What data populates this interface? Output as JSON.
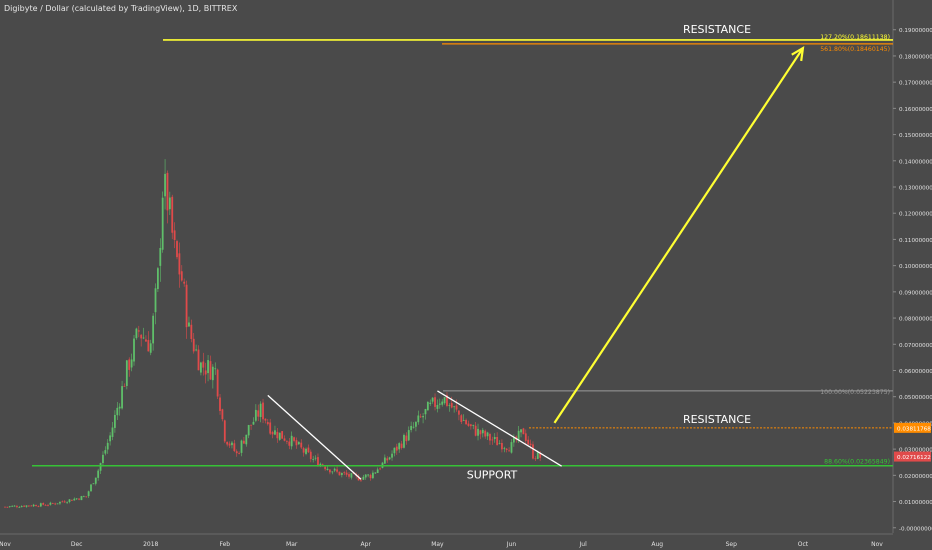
{
  "header": {
    "title": "Digibyte / Dollar (calculated by TradingView), 1D, BITTREX"
  },
  "colors": {
    "background": "#4a4a4a",
    "up": "#5fbf6a",
    "down": "#e04a4a",
    "support": "#36c236",
    "resistance_top": "#ffff33",
    "fib": "#ff8c00",
    "text": "#ffffff",
    "axis_text": "#e0e0e0"
  },
  "chart_data": {
    "type": "candlestick",
    "title": "Digibyte / Dollar (calculated by TradingView), 1D, BITTREX",
    "x_tick_labels": [
      "Nov",
      "Dec",
      "2018",
      "Feb",
      "Mar",
      "Apr",
      "May",
      "Jun",
      "Jul",
      "Aug",
      "Sep",
      "Oct",
      "Nov"
    ],
    "y_tick_labels": [
      "0.19000000",
      "0.18000000",
      "0.17000000",
      "0.16000000",
      "0.15000000",
      "0.14000000",
      "0.13000000",
      "0.12000000",
      "0.11000000",
      "0.10000000",
      "0.09000000",
      "0.08000000",
      "0.07000000",
      "0.06000000",
      "0.05000000",
      "0.04000000",
      "0.03000000",
      "0.02000000",
      "0.01000000",
      "-0.00000000"
    ],
    "y_ticks": [
      0.19,
      0.18,
      0.17,
      0.16,
      0.15,
      0.14,
      0.13,
      0.12,
      0.11,
      0.1,
      0.09,
      0.08,
      0.07,
      0.06,
      0.05,
      0.04,
      0.03,
      0.02,
      0.01,
      0.0
    ],
    "ylim": [
      -0.002,
      0.196
    ],
    "price_trend_points": [
      {
        "date": "2017-11-01",
        "value": 0.008
      },
      {
        "date": "2017-11-20",
        "value": 0.009
      },
      {
        "date": "2017-12-05",
        "value": 0.012
      },
      {
        "date": "2017-12-10",
        "value": 0.022
      },
      {
        "date": "2017-12-15",
        "value": 0.035
      },
      {
        "date": "2017-12-22",
        "value": 0.06
      },
      {
        "date": "2017-12-27",
        "value": 0.075
      },
      {
        "date": "2018-01-01",
        "value": 0.07
      },
      {
        "date": "2018-01-04",
        "value": 0.095
      },
      {
        "date": "2018-01-06",
        "value": 0.13
      },
      {
        "date": "2018-01-08",
        "value": 0.125
      },
      {
        "date": "2018-01-11",
        "value": 0.105
      },
      {
        "date": "2018-01-14",
        "value": 0.095
      },
      {
        "date": "2018-01-17",
        "value": 0.075
      },
      {
        "date": "2018-01-22",
        "value": 0.062
      },
      {
        "date": "2018-01-28",
        "value": 0.06
      },
      {
        "date": "2018-02-01",
        "value": 0.035
      },
      {
        "date": "2018-02-06",
        "value": 0.028
      },
      {
        "date": "2018-02-11",
        "value": 0.038
      },
      {
        "date": "2018-02-16",
        "value": 0.045
      },
      {
        "date": "2018-02-21",
        "value": 0.037
      },
      {
        "date": "2018-03-01",
        "value": 0.033
      },
      {
        "date": "2018-03-10",
        "value": 0.026
      },
      {
        "date": "2018-03-20",
        "value": 0.021
      },
      {
        "date": "2018-03-28",
        "value": 0.019
      },
      {
        "date": "2018-04-03",
        "value": 0.02
      },
      {
        "date": "2018-04-10",
        "value": 0.026
      },
      {
        "date": "2018-04-20",
        "value": 0.037
      },
      {
        "date": "2018-04-27",
        "value": 0.045
      },
      {
        "date": "2018-05-03",
        "value": 0.05
      },
      {
        "date": "2018-05-08",
        "value": 0.045
      },
      {
        "date": "2018-05-15",
        "value": 0.038
      },
      {
        "date": "2018-05-25",
        "value": 0.033
      },
      {
        "date": "2018-06-01",
        "value": 0.031
      },
      {
        "date": "2018-06-06",
        "value": 0.037
      },
      {
        "date": "2018-06-10",
        "value": 0.028
      },
      {
        "date": "2018-06-13",
        "value": 0.027
      }
    ],
    "horizontal_levels": [
      {
        "name": "support",
        "price": 0.02365849,
        "label": "88.60%(0.02365849)",
        "text": "SUPPORT"
      },
      {
        "name": "fib-100",
        "price": 0.05223875,
        "label": "100.00%(0.05223875)"
      },
      {
        "name": "resistance-1",
        "price": 0.03811768,
        "label": "0.03811768",
        "text": "RESISTANCE"
      },
      {
        "name": "fib-561",
        "price": 0.18460145,
        "label": "561.80%(0.18460145)"
      },
      {
        "name": "fib-127",
        "price": 0.18611138,
        "label": "127.20%(0.18611138)",
        "text": "RESISTANCE"
      }
    ],
    "current_price_label": "0.02716122",
    "trendlines": [
      {
        "name": "trendline-1",
        "from": {
          "date": "2018-02-19",
          "value": 0.0505
        },
        "to": {
          "date": "2018-03-30",
          "value": 0.0185
        }
      },
      {
        "name": "trendline-2",
        "from": {
          "date": "2018-05-01",
          "value": 0.0522
        },
        "to": {
          "date": "2018-06-22",
          "value": 0.0235
        }
      }
    ],
    "projection_arrow": {
      "from": {
        "date": "2018-06-19",
        "value": 0.04
      },
      "to": {
        "date": "2018-10-01",
        "value": 0.183
      }
    }
  },
  "labels": {
    "resistance_top": "RESISTANCE",
    "resistance_mid": "RESISTANCE",
    "support": "SUPPORT"
  }
}
